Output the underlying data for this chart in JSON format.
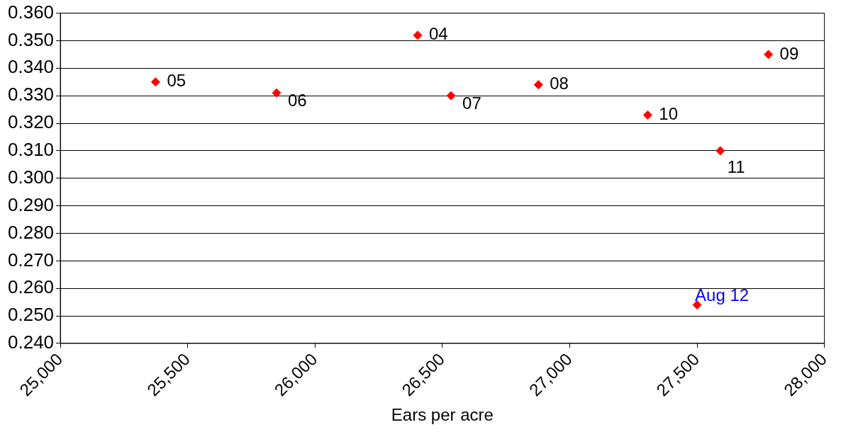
{
  "chart_data": {
    "type": "scatter",
    "xlabel": "Ears per acre",
    "series": [
      {
        "color": "#ff0000",
        "x": [
          25374,
          25849,
          26403,
          26534,
          26877,
          27306,
          27591,
          27780,
          27500
        ],
        "values": [
          0.335,
          0.331,
          0.352,
          0.33,
          0.334,
          0.323,
          0.31,
          0.345,
          0.254
        ]
      }
    ],
    "xlim": [
      25000,
      28000
    ],
    "xticks": [
      {
        "value": 25000,
        "label": "25,000"
      },
      {
        "value": 25500,
        "label": "25,500"
      },
      {
        "value": 26000,
        "label": "26,000"
      },
      {
        "value": 26500,
        "label": "26,500"
      },
      {
        "value": 27000,
        "label": "27,000"
      },
      {
        "value": 27500,
        "label": "27,500"
      },
      {
        "value": 28000,
        "label": "28,000"
      }
    ],
    "ylim": [
      0.24,
      0.36
    ],
    "yticks": [
      {
        "value": 0.24,
        "label": "0.240"
      },
      {
        "value": 0.25,
        "label": "0.250"
      },
      {
        "value": 0.26,
        "label": "0.260"
      },
      {
        "value": 0.27,
        "label": "0.270"
      },
      {
        "value": 0.28,
        "label": "0.280"
      },
      {
        "value": 0.29,
        "label": "0.290"
      },
      {
        "value": 0.3,
        "label": "0.300"
      },
      {
        "value": 0.31,
        "label": "0.310"
      },
      {
        "value": 0.32,
        "label": "0.320"
      },
      {
        "value": 0.33,
        "label": "0.330"
      },
      {
        "value": 0.34,
        "label": "0.340"
      },
      {
        "value": 0.35,
        "label": "0.350"
      },
      {
        "value": 0.36,
        "label": "0.360"
      }
    ],
    "grid": "y",
    "marker": "diamond",
    "legend": false,
    "annotations": [
      {
        "text": "05",
        "x": 25374,
        "y": 0.335
      },
      {
        "text": "06",
        "x": 25849,
        "y": 0.331
      },
      {
        "text": "04",
        "x": 26403,
        "y": 0.352
      },
      {
        "text": "07",
        "x": 26534,
        "y": 0.33
      },
      {
        "text": "08",
        "x": 26877,
        "y": 0.334
      },
      {
        "text": "10",
        "x": 27306,
        "y": 0.323
      },
      {
        "text": "11",
        "x": 27591,
        "y": 0.31
      },
      {
        "text": "09",
        "x": 27780,
        "y": 0.345
      },
      {
        "text": "Aug 12",
        "x": 27500,
        "y": 0.254
      }
    ]
  }
}
